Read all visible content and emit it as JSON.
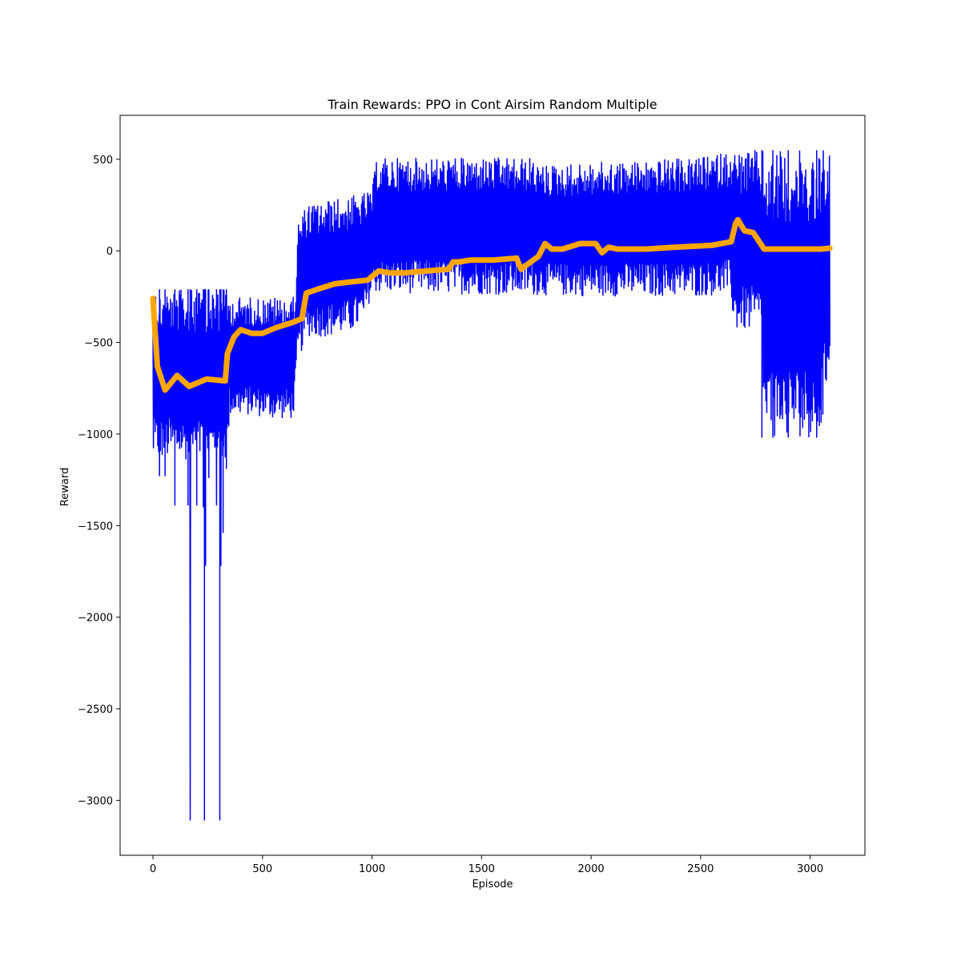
{
  "chart_data": {
    "type": "line",
    "title": "Train Rewards: PPO in Cont Airsim Random Multiple",
    "xlabel": "Episode",
    "ylabel": "Reward",
    "xlim": [
      -150,
      3250
    ],
    "ylim": [
      -3300,
      740
    ],
    "xticks": [
      0,
      500,
      1000,
      1500,
      2000,
      2500,
      3000
    ],
    "xtick_labels": [
      "0",
      "500",
      "1000",
      "1500",
      "2000",
      "2500",
      "3000"
    ],
    "yticks": [
      500,
      0,
      -500,
      -1000,
      -1500,
      -2000,
      -2500,
      -3000
    ],
    "ytick_labels": [
      "500",
      "0",
      "−500",
      "−1000",
      "−1500",
      "−2000",
      "−2500",
      "−3000"
    ],
    "grid": false,
    "series": [
      {
        "role": "raw",
        "color": "#0000ff",
        "band_lo": [
          [
            0,
            -1150
          ],
          [
            40,
            -1140
          ],
          [
            120,
            -1140
          ],
          [
            200,
            -1150
          ],
          [
            280,
            -1150
          ],
          [
            340,
            -1150
          ],
          [
            350,
            -900
          ],
          [
            450,
            -900
          ],
          [
            550,
            -920
          ],
          [
            640,
            -920
          ],
          [
            660,
            -620
          ],
          [
            700,
            -470
          ],
          [
            800,
            -470
          ],
          [
            900,
            -450
          ],
          [
            960,
            -400
          ],
          [
            1000,
            -230
          ],
          [
            1500,
            -240
          ],
          [
            2000,
            -250
          ],
          [
            2500,
            -250
          ],
          [
            2640,
            -240
          ],
          [
            2650,
            -440
          ],
          [
            2780,
            -440
          ],
          [
            2790,
            -1020
          ],
          [
            3050,
            -1020
          ],
          [
            3090,
            -590
          ]
        ],
        "band_hi": [
          [
            0,
            -210
          ],
          [
            340,
            -210
          ],
          [
            350,
            -250
          ],
          [
            650,
            -250
          ],
          [
            660,
            160
          ],
          [
            700,
            250
          ],
          [
            800,
            280
          ],
          [
            900,
            300
          ],
          [
            1000,
            330
          ],
          [
            1020,
            510
          ],
          [
            1400,
            510
          ],
          [
            1600,
            510
          ],
          [
            1740,
            510
          ],
          [
            1760,
            470
          ],
          [
            2500,
            510
          ],
          [
            2640,
            550
          ],
          [
            3090,
            550
          ]
        ],
        "spikes": [
          [
            30,
            -1230
          ],
          [
            55,
            -1230
          ],
          [
            100,
            -1390
          ],
          [
            160,
            -1390
          ],
          [
            170,
            -3110
          ],
          [
            200,
            -1390
          ],
          [
            230,
            -1400
          ],
          [
            235,
            -3110
          ],
          [
            240,
            -1720
          ],
          [
            255,
            -1240
          ],
          [
            290,
            -1390
          ],
          [
            305,
            -3110
          ],
          [
            310,
            -1720
          ],
          [
            320,
            -1540
          ],
          [
            335,
            -1190
          ],
          [
            2780,
            -1020
          ],
          [
            2830,
            -1020
          ],
          [
            2900,
            -1020
          ],
          [
            3030,
            -1020
          ]
        ]
      },
      {
        "role": "smoothed",
        "color": "#ffa500",
        "points": [
          [
            0,
            -260
          ],
          [
            20,
            -630
          ],
          [
            55,
            -760
          ],
          [
            110,
            -680
          ],
          [
            165,
            -740
          ],
          [
            245,
            -700
          ],
          [
            330,
            -710
          ],
          [
            340,
            -560
          ],
          [
            370,
            -470
          ],
          [
            400,
            -430
          ],
          [
            450,
            -450
          ],
          [
            500,
            -450
          ],
          [
            560,
            -420
          ],
          [
            640,
            -390
          ],
          [
            680,
            -370
          ],
          [
            700,
            -230
          ],
          [
            750,
            -210
          ],
          [
            830,
            -180
          ],
          [
            900,
            -170
          ],
          [
            980,
            -160
          ],
          [
            1030,
            -110
          ],
          [
            1080,
            -120
          ],
          [
            1150,
            -120
          ],
          [
            1250,
            -110
          ],
          [
            1350,
            -100
          ],
          [
            1370,
            -60
          ],
          [
            1400,
            -60
          ],
          [
            1450,
            -50
          ],
          [
            1500,
            -50
          ],
          [
            1550,
            -50
          ],
          [
            1660,
            -40
          ],
          [
            1680,
            -100
          ],
          [
            1760,
            -30
          ],
          [
            1790,
            40
          ],
          [
            1820,
            10
          ],
          [
            1870,
            10
          ],
          [
            1950,
            40
          ],
          [
            2020,
            40
          ],
          [
            2050,
            -10
          ],
          [
            2080,
            20
          ],
          [
            2120,
            10
          ],
          [
            2250,
            10
          ],
          [
            2380,
            20
          ],
          [
            2550,
            30
          ],
          [
            2640,
            50
          ],
          [
            2660,
            150
          ],
          [
            2670,
            170
          ],
          [
            2700,
            110
          ],
          [
            2740,
            100
          ],
          [
            2790,
            10
          ],
          [
            2850,
            10
          ],
          [
            2950,
            10
          ],
          [
            3050,
            10
          ],
          [
            3090,
            15
          ]
        ]
      }
    ]
  }
}
